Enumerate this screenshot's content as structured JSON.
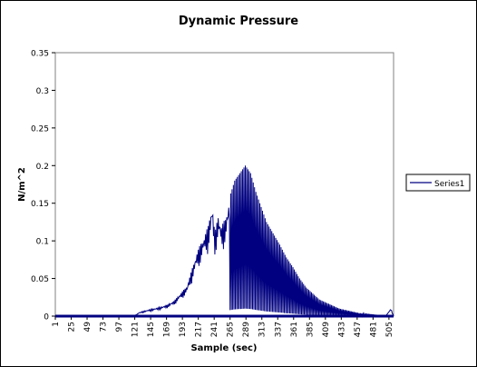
{
  "chart_data": {
    "type": "line",
    "title": "Dynamic Pressure",
    "xlabel": "Sample (sec)",
    "ylabel": "N/m^2",
    "ylim": [
      0,
      0.35
    ],
    "xlim": [
      1,
      512
    ],
    "y_ticks": [
      "0",
      "0.05",
      "0.1",
      "0.15",
      "0.2",
      "0.25",
      "0.3",
      "0.35"
    ],
    "x_ticks": [
      "1",
      "25",
      "49",
      "73",
      "97",
      "121",
      "145",
      "169",
      "193",
      "217",
      "241",
      "265",
      "289",
      "313",
      "337",
      "361",
      "385",
      "409",
      "433",
      "457",
      "481",
      "505"
    ],
    "legend_position": "right",
    "series": [
      {
        "name": "Series1",
        "color": "#000080",
        "anchors": [
          [
            1,
            0
          ],
          [
            120,
            0
          ],
          [
            128,
            0.005
          ],
          [
            140,
            0.008
          ],
          [
            150,
            0.01
          ],
          [
            160,
            0.012
          ],
          [
            170,
            0.015
          ],
          [
            180,
            0.02
          ],
          [
            190,
            0.03
          ],
          [
            200,
            0.04
          ],
          [
            205,
            0.055
          ],
          [
            210,
            0.07
          ],
          [
            215,
            0.085
          ],
          [
            220,
            0.095
          ],
          [
            225,
            0.105
          ],
          [
            232,
            0.12
          ],
          [
            238,
            0.15
          ],
          [
            242,
            0.11
          ],
          [
            247,
            0.135
          ],
          [
            252,
            0.12
          ],
          [
            258,
            0.13
          ],
          [
            265,
            0.16
          ],
          [
            272,
            0.18
          ],
          [
            280,
            0.19
          ],
          [
            288,
            0.2
          ],
          [
            296,
            0.19
          ],
          [
            304,
            0.165
          ],
          [
            312,
            0.145
          ],
          [
            320,
            0.125
          ],
          [
            330,
            0.11
          ],
          [
            340,
            0.095
          ],
          [
            350,
            0.078
          ],
          [
            360,
            0.065
          ],
          [
            370,
            0.05
          ],
          [
            380,
            0.038
          ],
          [
            390,
            0.03
          ],
          [
            400,
            0.022
          ],
          [
            410,
            0.018
          ],
          [
            420,
            0.014
          ],
          [
            430,
            0.01
          ],
          [
            440,
            0.008
          ],
          [
            450,
            0.006
          ],
          [
            460,
            0.004
          ],
          [
            470,
            0.003
          ],
          [
            480,
            0.002
          ],
          [
            490,
            0.001
          ],
          [
            500,
            0.0
          ],
          [
            508,
            0.01
          ],
          [
            512,
            0.0
          ]
        ]
      }
    ]
  }
}
